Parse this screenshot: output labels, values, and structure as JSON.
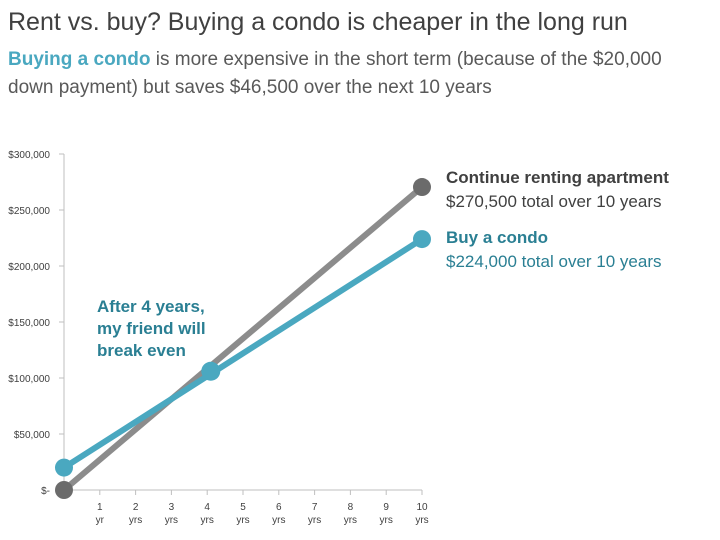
{
  "title": "Rent vs. buy? Buying a condo is cheaper in the long run",
  "subtitle": {
    "highlight": "Buying a condo",
    "rest": " is more expensive in the short term (because of the $20,000 down payment) but saves $46,500 over the next 10 years"
  },
  "colors": {
    "rent": "#8c8c8c",
    "rent_marker": "#6b6b6b",
    "buy": "#4aa8c0",
    "annotation": "#2a7f93",
    "axis": "#bfbfbf"
  },
  "chart_data": {
    "type": "line",
    "x": [
      0,
      10
    ],
    "x_ticks": [
      {
        "value": 1,
        "top": "1",
        "bottom": "yr"
      },
      {
        "value": 2,
        "top": "2",
        "bottom": "yrs"
      },
      {
        "value": 3,
        "top": "3",
        "bottom": "yrs"
      },
      {
        "value": 4,
        "top": "4",
        "bottom": "yrs"
      },
      {
        "value": 5,
        "top": "5",
        "bottom": "yrs"
      },
      {
        "value": 6,
        "top": "6",
        "bottom": "yrs"
      },
      {
        "value": 7,
        "top": "7",
        "bottom": "yrs"
      },
      {
        "value": 8,
        "top": "8",
        "bottom": "yrs"
      },
      {
        "value": 9,
        "top": "9",
        "bottom": "yrs"
      },
      {
        "value": 10,
        "top": "10",
        "bottom": "yrs"
      }
    ],
    "y_ticks": [
      {
        "value": 0,
        "label": "$-"
      },
      {
        "value": 50000,
        "label": "$50,000"
      },
      {
        "value": 100000,
        "label": "$100,000"
      },
      {
        "value": 150000,
        "label": "$150,000"
      },
      {
        "value": 200000,
        "label": "$200,000"
      },
      {
        "value": 250000,
        "label": "$250,000"
      },
      {
        "value": 300000,
        "label": "$300,000"
      }
    ],
    "xlim": [
      0,
      10
    ],
    "ylim": [
      0,
      300000
    ],
    "series": [
      {
        "name": "Continue renting apartment",
        "detail": "$270,500 total over 10 years",
        "x": [
          0,
          10
        ],
        "values": [
          0,
          270500
        ]
      },
      {
        "name": "Buy a condo",
        "detail": "$224,000 total over 10 years",
        "x": [
          0,
          10
        ],
        "values": [
          20000,
          224000
        ]
      }
    ],
    "annotation": {
      "lines": [
        "After 4 years,",
        "my friend will",
        "break even"
      ],
      "x": 4.1,
      "y": 106000
    }
  }
}
